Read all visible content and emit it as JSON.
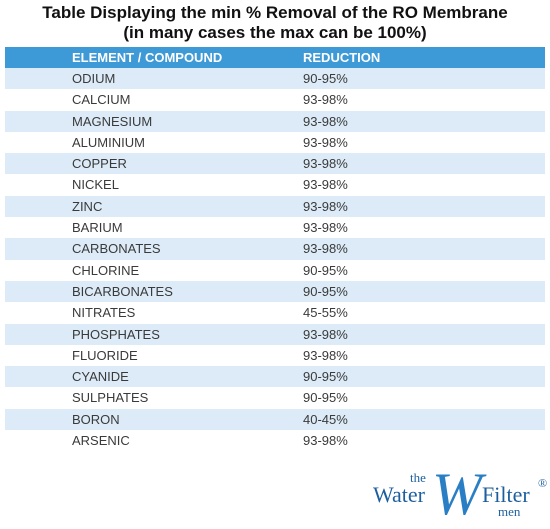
{
  "title": [
    "Table Displaying the min % Removal of the RO Membrane",
    "(in many cases the max can be 100%)"
  ],
  "table": {
    "header": [
      "ELEMENT / COMPOUND",
      "REDUCTION"
    ],
    "rows": [
      [
        "ODIUM",
        "90-95%"
      ],
      [
        "CALCIUM",
        "93-98%"
      ],
      [
        "MAGNESIUM",
        "93-98%"
      ],
      [
        "ALUMINIUM",
        "93-98%"
      ],
      [
        "COPPER",
        "93-98%"
      ],
      [
        "NICKEL",
        "93-98%"
      ],
      [
        "ZINC",
        "93-98%"
      ],
      [
        "BARIUM",
        "93-98%"
      ],
      [
        "CARBONATES",
        "93-98%"
      ],
      [
        "CHLORINE",
        "90-95%"
      ],
      [
        "BICARBONATES",
        "90-95%"
      ],
      [
        "NITRATES",
        "45-55%"
      ],
      [
        "PHOSPHATES",
        "93-98%"
      ],
      [
        "FLUORIDE",
        "93-98%"
      ],
      [
        "CYANIDE",
        "90-95%"
      ],
      [
        "SULPHATES",
        "90-95%"
      ],
      [
        "BORON",
        "40-45%"
      ],
      [
        "ARSENIC",
        "93-98%"
      ]
    ]
  },
  "logo": {
    "the": "the",
    "water": "Water",
    "w": "W",
    "filter": "Filter",
    "registered": "®",
    "men": "men"
  }
}
